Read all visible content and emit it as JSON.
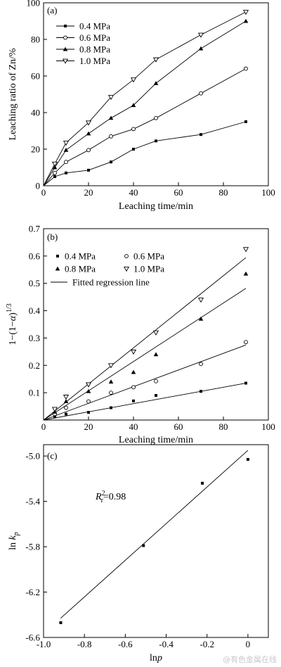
{
  "chart_data": [
    {
      "type": "line",
      "panel_label": "(a)",
      "xlabel": "Leaching time/min",
      "ylabel": "Leaching ratio of Zn/%",
      "xlim": [
        0,
        100
      ],
      "ylim": [
        0,
        100
      ],
      "xticks": [
        0,
        20,
        40,
        60,
        80,
        100
      ],
      "yticks": [
        0,
        20,
        40,
        60,
        80,
        100
      ],
      "x": [
        0,
        5,
        10,
        20,
        30,
        40,
        50,
        70,
        90
      ],
      "legend_position": "top-left",
      "series": [
        {
          "name": "0.4 MPa",
          "marker": "filled-square",
          "values": [
            0,
            5,
            7,
            8.5,
            13,
            20,
            24.5,
            28,
            35
          ]
        },
        {
          "name": "0.6 MPa",
          "marker": "open-circle",
          "values": [
            0,
            7,
            13,
            19.5,
            27,
            31,
            37,
            50.5,
            64
          ]
        },
        {
          "name": "0.8 MPa",
          "marker": "filled-triangle",
          "values": [
            0,
            10,
            19.5,
            28.5,
            37,
            44,
            56,
            75,
            90
          ]
        },
        {
          "name": "1.0 MPa",
          "marker": "open-triangle-down",
          "values": [
            0,
            12,
            23.5,
            34.5,
            48.5,
            58,
            69,
            82.5,
            95
          ]
        }
      ]
    },
    {
      "type": "scatter",
      "panel_label": "(b)",
      "xlabel": "Leaching time/min",
      "ylabel_parts": [
        "1−(1−",
        "α",
        ")",
        "1/3"
      ],
      "xlim": [
        0,
        100
      ],
      "ylim": [
        0,
        0.7
      ],
      "xticks": [
        0,
        20,
        40,
        60,
        80,
        100
      ],
      "yticks": [
        "0.1",
        "0.2",
        "0.3",
        "0.4",
        "0.5",
        "0.6",
        "0.7"
      ],
      "x": [
        0,
        5,
        10,
        20,
        30,
        40,
        50,
        70,
        90
      ],
      "fit_label": "Fitted regression line",
      "series": [
        {
          "name": "0.4 MPa",
          "marker": "filled-square",
          "values": [
            0,
            0.012,
            0.022,
            0.028,
            0.045,
            0.07,
            0.09,
            0.105,
            0.135
          ],
          "fit_slope": 0.0015
        },
        {
          "name": "0.6 MPa",
          "marker": "open-circle",
          "values": [
            0,
            0.022,
            0.045,
            0.068,
            0.1,
            0.12,
            0.142,
            0.205,
            0.285
          ],
          "fit_slope": 0.00305
        },
        {
          "name": "0.8 MPa",
          "marker": "filled-triangle",
          "values": [
            0,
            0.03,
            0.068,
            0.105,
            0.14,
            0.175,
            0.24,
            0.37,
            0.535
          ],
          "fit_slope": 0.00535
        },
        {
          "name": "1.0 MPa",
          "marker": "open-triangle-down",
          "values": [
            0,
            0.04,
            0.085,
            0.13,
            0.2,
            0.25,
            0.32,
            0.44,
            0.625
          ],
          "fit_slope": 0.0066
        }
      ]
    },
    {
      "type": "scatter",
      "panel_label": "(c)",
      "xlabel": "ln",
      "xlabel_italic": "p",
      "ylabel": "ln",
      "ylabel_italic": "k",
      "ylabel_sub": "p",
      "annotation": {
        "prefix": "R",
        "sup": "2",
        "sub": "r",
        "value": "=0.98"
      },
      "xlim": [
        -1.0,
        0.1
      ],
      "ylim": [
        -6.6,
        -4.9
      ],
      "xticks": [
        "-1.0",
        "-0.8",
        "-0.6",
        "-0.4",
        "-0.2",
        "0"
      ],
      "yticks": [
        "-6.6",
        "-6.2",
        "-5.8",
        "-5.4",
        "-5.0"
      ],
      "points": [
        {
          "x": -0.916,
          "y": -6.47
        },
        {
          "x": -0.511,
          "y": -5.79
        },
        {
          "x": -0.223,
          "y": -5.24
        },
        {
          "x": 0.0,
          "y": -5.03
        }
      ],
      "fit_line": {
        "x": [
          -0.916,
          0.0
        ],
        "y": [
          -6.43,
          -4.95
        ]
      }
    }
  ],
  "watermark": "@有色金属在线"
}
